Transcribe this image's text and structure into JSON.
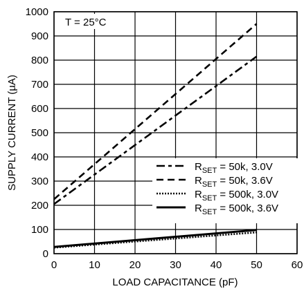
{
  "chart_data": {
    "type": "line",
    "xlabel": "LOAD CAPACITANCE (pF)",
    "ylabel": "SUPPLY CURRENT (µA)",
    "xlim": [
      0,
      60
    ],
    "ylim": [
      0,
      1000
    ],
    "x_ticks": [
      "0",
      "10",
      "20",
      "30",
      "40",
      "50",
      "60"
    ],
    "y_ticks": [
      "0",
      "100",
      "200",
      "300",
      "400",
      "500",
      "600",
      "700",
      "800",
      "900",
      "1000"
    ],
    "grid": true,
    "legend_position": "lower-right",
    "annotation": "T = 25°C",
    "series": [
      {
        "name": "RSET = 50k, 3.0V",
        "name_main": "R",
        "name_sub": "SET",
        "name_rest": " = 50k, 3.0V",
        "style": "dash-dot",
        "x": [
          0,
          50
        ],
        "y": [
          205,
          815
        ]
      },
      {
        "name": "RSET = 50k, 3.6V",
        "name_main": "R",
        "name_sub": "SET",
        "name_rest": " = 50k, 3.6V",
        "style": "dashed",
        "x": [
          0,
          50
        ],
        "y": [
          225,
          950
        ]
      },
      {
        "name": "RSET = 500k, 3.0V",
        "name_main": "R",
        "name_sub": "SET",
        "name_rest": " = 500k, 3.0V",
        "style": "dotted",
        "x": [
          0,
          50
        ],
        "y": [
          25,
          88
        ]
      },
      {
        "name": "RSET = 500k, 3.6V",
        "name_main": "R",
        "name_sub": "SET",
        "name_rest": " = 500k, 3.6V",
        "style": "solid",
        "x": [
          0,
          50
        ],
        "y": [
          28,
          98
        ]
      }
    ]
  }
}
